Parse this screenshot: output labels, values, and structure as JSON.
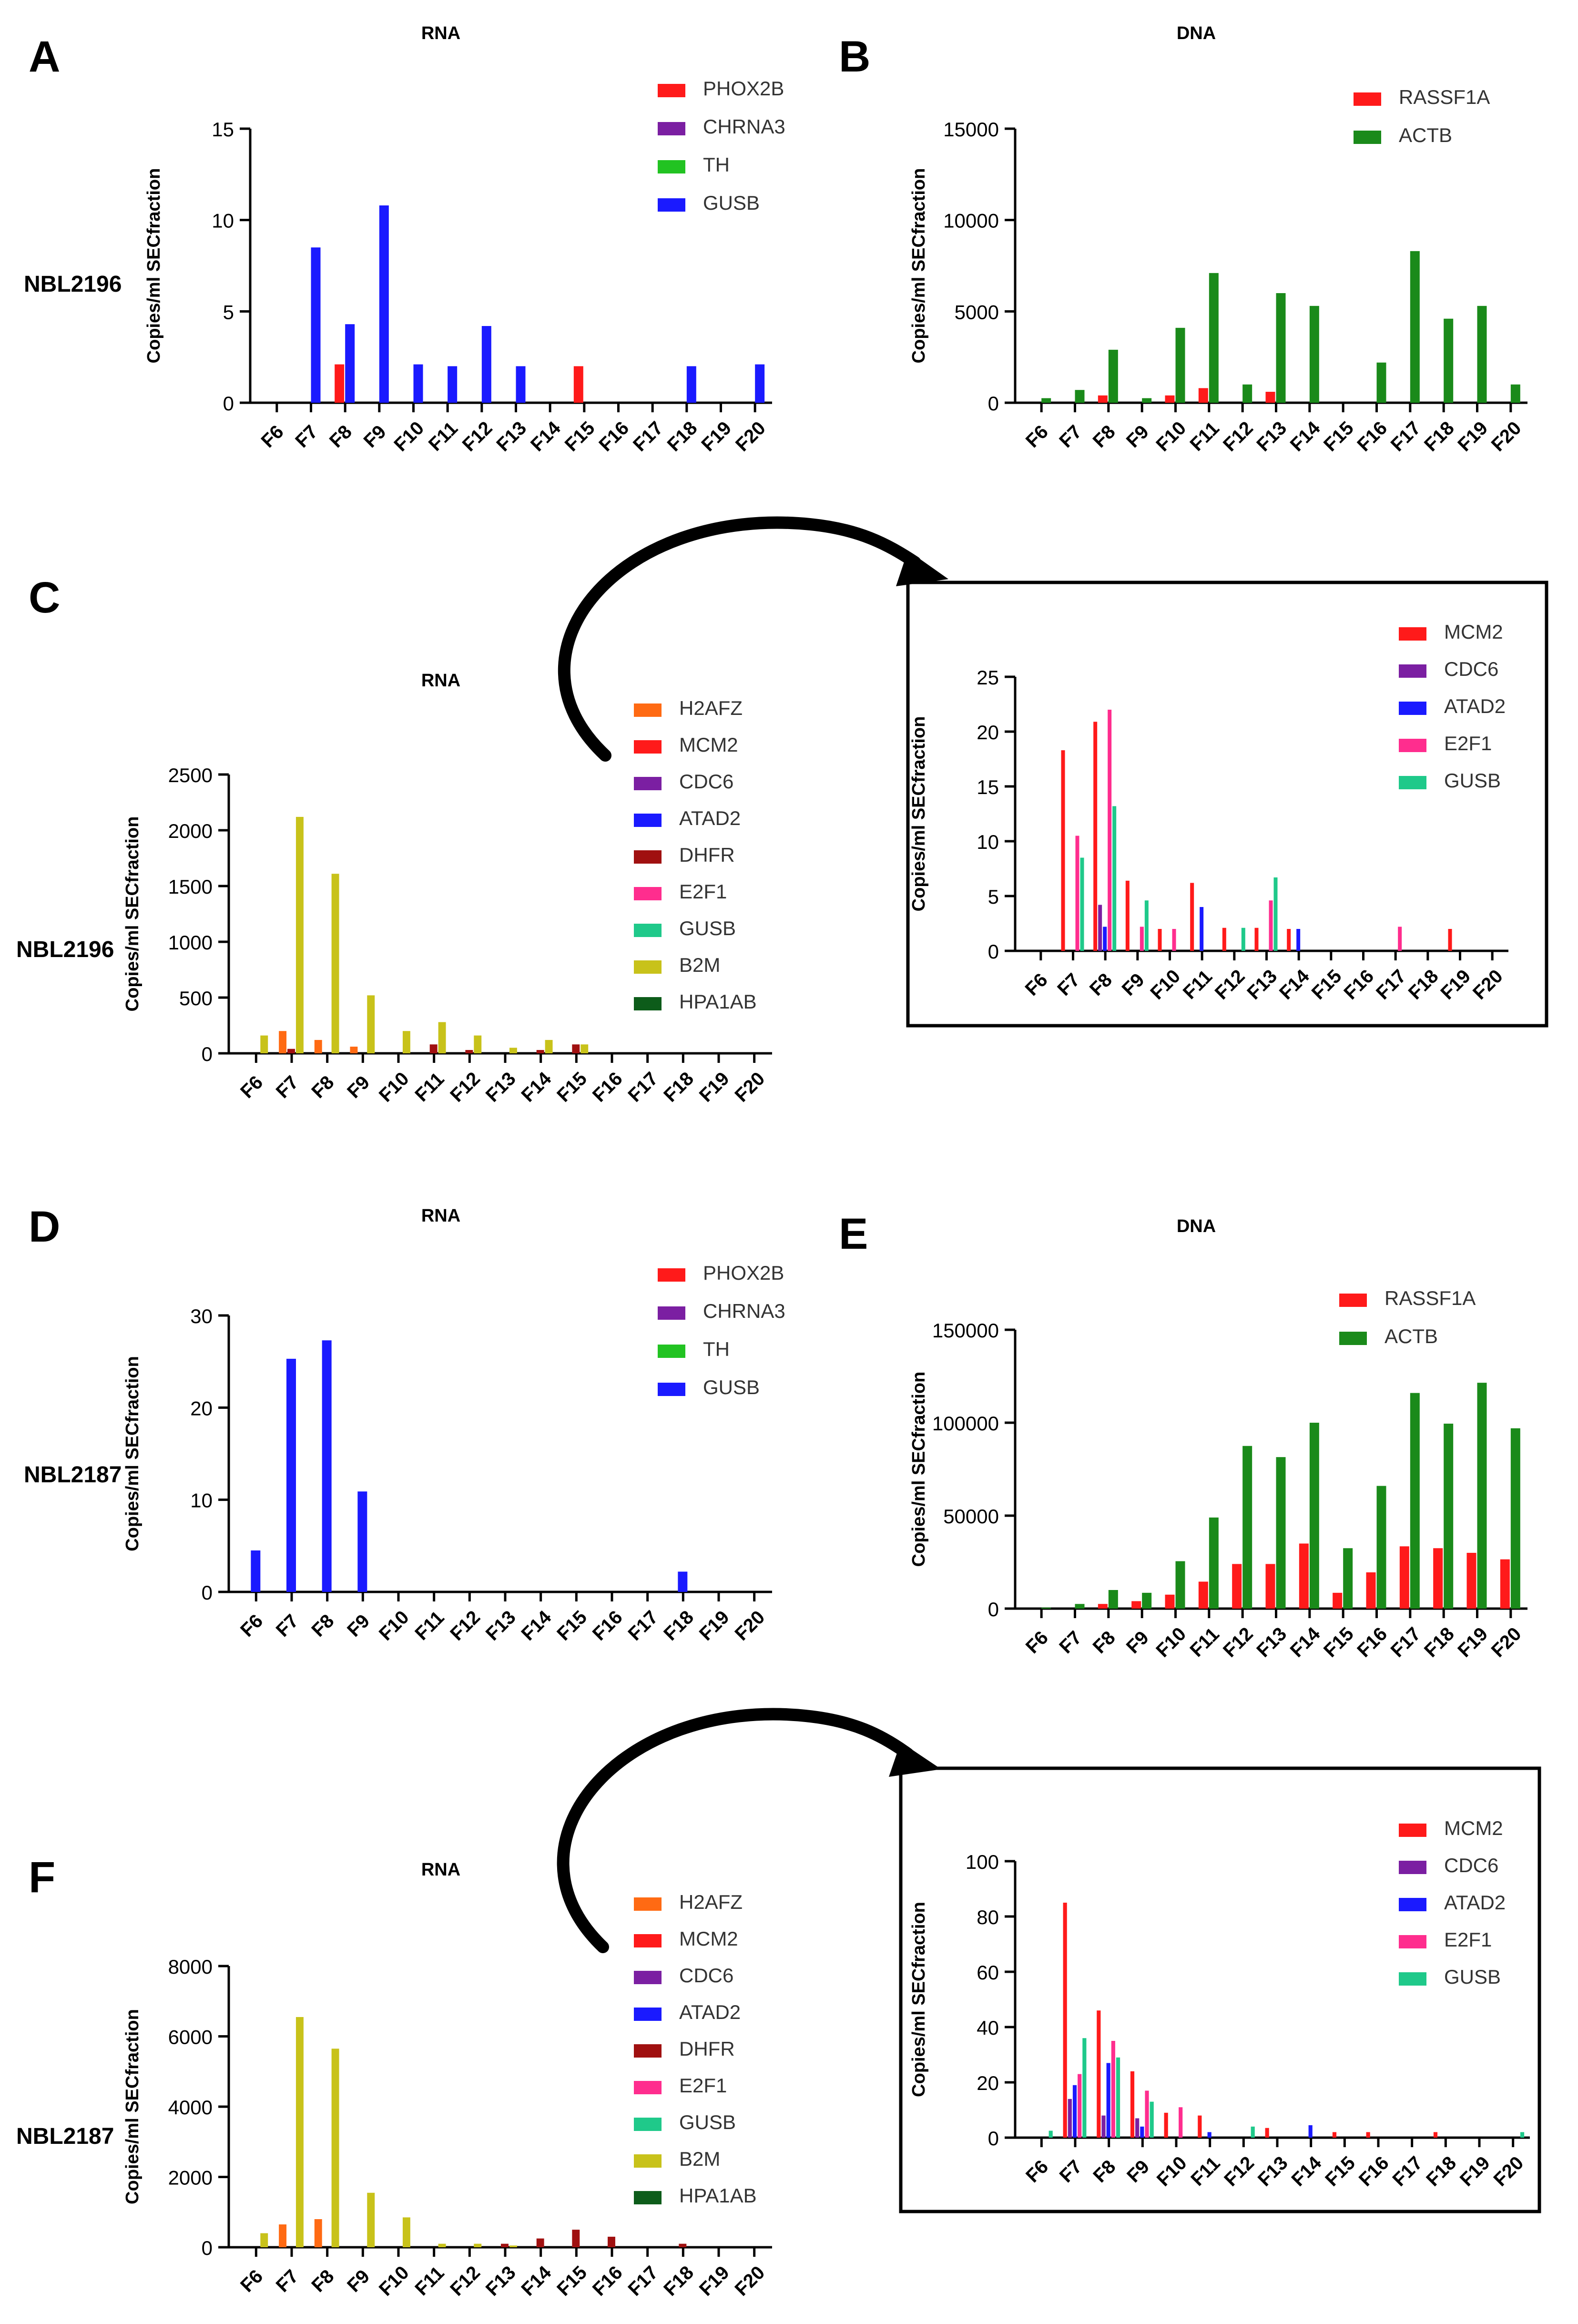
{
  "figure": {
    "panel_letters": [
      "A",
      "B",
      "C",
      "D",
      "E",
      "F"
    ],
    "row_labels": [
      "NBL2196",
      "NBL2196",
      "NBL2187",
      "NBL2187"
    ]
  },
  "colors": {
    "PHOX2B": "#ff1a1a",
    "CHRNA3": "#7b1fa2",
    "TH": "#22c322",
    "GUSB_blue": "#1a1aff",
    "RASSF1A": "#ff1a1a",
    "ACTB": "#1a8a1a",
    "H2AFZ": "#ff6a13",
    "MCM2": "#ff1a1a",
    "CDC6": "#7b1fa2",
    "ATAD2": "#1a1aff",
    "DHFR": "#a01010",
    "E2F1": "#ff2d8e",
    "GUSB": "#1fc98a",
    "B2M": "#c8c21a",
    "HPA1AB": "#0d5c1a"
  },
  "chart_data": [
    {
      "id": "A",
      "type": "bar",
      "title": "RNA",
      "ylabel": "Copies/ml SECfraction",
      "ylim": [
        0,
        15
      ],
      "yticks": [
        0,
        5,
        10,
        15
      ],
      "categories": [
        "F6",
        "F7",
        "F8",
        "F9",
        "F10",
        "F11",
        "F12",
        "F13",
        "F14",
        "F15",
        "F16",
        "F17",
        "F18",
        "F19",
        "F20"
      ],
      "series": [
        {
          "name": "PHOX2B",
          "color": "#ff1a1a",
          "values": [
            0,
            0,
            2.1,
            0,
            0,
            0,
            0,
            0,
            0,
            2.0,
            0,
            0,
            0,
            0,
            0
          ]
        },
        {
          "name": "CHRNA3",
          "color": "#7b1fa2",
          "values": [
            0,
            0,
            0,
            0,
            0,
            0,
            0,
            0,
            0,
            0,
            0,
            0,
            0,
            0,
            0
          ]
        },
        {
          "name": "TH",
          "color": "#22c322",
          "values": [
            0,
            0,
            0,
            0,
            0,
            0,
            0,
            0,
            0,
            0,
            0,
            0,
            0,
            0,
            0
          ]
        },
        {
          "name": "GUSB",
          "color": "#1a1aff",
          "values": [
            0,
            8.5,
            4.3,
            10.8,
            2.1,
            2.0,
            4.2,
            2.0,
            0,
            0,
            0,
            0,
            2.0,
            0,
            2.1
          ]
        }
      ]
    },
    {
      "id": "B",
      "type": "bar",
      "title": "DNA",
      "ylabel": "Copies/ml SECfraction",
      "ylim": [
        0,
        15000
      ],
      "yticks": [
        0,
        5000,
        10000,
        15000
      ],
      "categories": [
        "F6",
        "F7",
        "F8",
        "F9",
        "F10",
        "F11",
        "F12",
        "F13",
        "F14",
        "F15",
        "F16",
        "F17",
        "F18",
        "F19",
        "F20"
      ],
      "series": [
        {
          "name": "RASSF1A",
          "color": "#ff1a1a",
          "values": [
            0,
            0,
            400,
            0,
            400,
            800,
            0,
            600,
            0,
            0,
            0,
            0,
            0,
            0,
            0
          ]
        },
        {
          "name": "ACTB",
          "color": "#1a8a1a",
          "values": [
            250,
            700,
            2900,
            250,
            4100,
            7100,
            1000,
            6000,
            5300,
            0,
            2200,
            8300,
            4600,
            5300,
            1000
          ]
        }
      ]
    },
    {
      "id": "C",
      "type": "bar",
      "title": "RNA",
      "ylabel": "Copies/ml SECfraction",
      "ylim": [
        0,
        2500
      ],
      "yticks": [
        0,
        500,
        1000,
        1500,
        2000,
        2500
      ],
      "categories": [
        "F6",
        "F7",
        "F8",
        "F9",
        "F10",
        "F11",
        "F12",
        "F13",
        "F14",
        "F15",
        "F16",
        "F17",
        "F18",
        "F19",
        "F20"
      ],
      "series": [
        {
          "name": "H2AFZ",
          "color": "#ff6a13",
          "values": [
            0,
            200,
            120,
            60,
            0,
            0,
            0,
            0,
            0,
            0,
            0,
            0,
            0,
            0,
            0
          ]
        },
        {
          "name": "MCM2",
          "color": "#ff1a1a",
          "values": [
            0,
            0,
            0,
            0,
            0,
            0,
            0,
            0,
            0,
            0,
            0,
            0,
            0,
            0,
            0
          ]
        },
        {
          "name": "CDC6",
          "color": "#7b1fa2",
          "values": [
            0,
            0,
            0,
            0,
            0,
            0,
            0,
            0,
            0,
            0,
            0,
            0,
            0,
            0,
            0
          ]
        },
        {
          "name": "ATAD2",
          "color": "#1a1aff",
          "values": [
            0,
            0,
            0,
            0,
            0,
            0,
            0,
            0,
            0,
            0,
            0,
            0,
            0,
            0,
            0
          ]
        },
        {
          "name": "DHFR",
          "color": "#a01010",
          "values": [
            0,
            40,
            0,
            0,
            0,
            80,
            30,
            0,
            30,
            80,
            0,
            0,
            0,
            0,
            0
          ]
        },
        {
          "name": "E2F1",
          "color": "#ff2d8e",
          "values": [
            0,
            0,
            0,
            0,
            0,
            0,
            0,
            0,
            0,
            0,
            0,
            0,
            0,
            0,
            0
          ]
        },
        {
          "name": "GUSB",
          "color": "#1fc98a",
          "values": [
            0,
            0,
            0,
            0,
            0,
            0,
            0,
            0,
            0,
            0,
            0,
            0,
            0,
            0,
            0
          ]
        },
        {
          "name": "B2M",
          "color": "#c8c21a",
          "values": [
            160,
            2120,
            1610,
            520,
            200,
            280,
            160,
            50,
            120,
            80,
            0,
            0,
            0,
            0,
            0
          ]
        },
        {
          "name": "HPA1AB",
          "color": "#0d5c1a",
          "values": [
            0,
            0,
            0,
            0,
            0,
            0,
            0,
            0,
            0,
            0,
            0,
            0,
            0,
            0,
            0
          ]
        }
      ]
    },
    {
      "id": "C-inset",
      "type": "bar",
      "title": "",
      "ylabel": "Copies/ml SECfraction",
      "ylim": [
        0,
        25
      ],
      "yticks": [
        0,
        5,
        10,
        15,
        20,
        25
      ],
      "categories": [
        "F6",
        "F7",
        "F8",
        "F9",
        "F10",
        "F11",
        "F12",
        "F13",
        "F14",
        "F15",
        "F16",
        "F17",
        "F18",
        "F19",
        "F20"
      ],
      "series": [
        {
          "name": "MCM2",
          "color": "#ff1a1a",
          "values": [
            0,
            18.3,
            20.9,
            6.4,
            2.0,
            6.2,
            2.1,
            2.1,
            2.0,
            0,
            0,
            0,
            0,
            2.0,
            0
          ]
        },
        {
          "name": "CDC6",
          "color": "#7b1fa2",
          "values": [
            0,
            0,
            4.2,
            0,
            0,
            0,
            0,
            0,
            0,
            0,
            0,
            0,
            0,
            0,
            0
          ]
        },
        {
          "name": "ATAD2",
          "color": "#1a1aff",
          "values": [
            0,
            0,
            2.2,
            0,
            0,
            4.0,
            0,
            0,
            2.0,
            0,
            0,
            0,
            0,
            0,
            0
          ]
        },
        {
          "name": "E2F1",
          "color": "#ff2d8e",
          "values": [
            0,
            10.5,
            22.0,
            2.2,
            2.0,
            0,
            0,
            4.6,
            0,
            0,
            0,
            2.2,
            0,
            0,
            0
          ]
        },
        {
          "name": "GUSB",
          "color": "#1fc98a",
          "values": [
            0,
            8.5,
            13.2,
            4.6,
            0,
            0,
            2.1,
            6.7,
            0,
            0,
            0,
            0,
            0,
            0,
            0
          ]
        }
      ]
    },
    {
      "id": "D",
      "type": "bar",
      "title": "RNA",
      "ylabel": "Copies/ml SECfraction",
      "ylim": [
        0,
        30
      ],
      "yticks": [
        0,
        10,
        20,
        30
      ],
      "categories": [
        "F6",
        "F7",
        "F8",
        "F9",
        "F10",
        "F11",
        "F12",
        "F13",
        "F14",
        "F15",
        "F16",
        "F17",
        "F18",
        "F19",
        "F20"
      ],
      "series": [
        {
          "name": "PHOX2B",
          "color": "#ff1a1a",
          "values": [
            0,
            0,
            0,
            0,
            0,
            0,
            0,
            0,
            0,
            0,
            0,
            0,
            0,
            0,
            0
          ]
        },
        {
          "name": "CHRNA3",
          "color": "#7b1fa2",
          "values": [
            0,
            0,
            0,
            0,
            0,
            0,
            0,
            0,
            0,
            0,
            0,
            0,
            0,
            0,
            0
          ]
        },
        {
          "name": "TH",
          "color": "#22c322",
          "values": [
            0,
            0,
            0,
            0,
            0,
            0,
            0,
            0,
            0,
            0,
            0,
            0,
            0,
            0,
            0
          ]
        },
        {
          "name": "GUSB",
          "color": "#1a1aff",
          "values": [
            4.5,
            25.3,
            27.3,
            10.9,
            0,
            0,
            0,
            0,
            0,
            0,
            0,
            0,
            2.2,
            0,
            0
          ]
        }
      ]
    },
    {
      "id": "E",
      "type": "bar",
      "title": "DNA",
      "ylabel": "Copies/ml SECfraction",
      "ylim": [
        0,
        150000
      ],
      "yticks": [
        0,
        50000,
        100000,
        150000
      ],
      "categories": [
        "F6",
        "F7",
        "F8",
        "F9",
        "F10",
        "F11",
        "F12",
        "F13",
        "F14",
        "F15",
        "F16",
        "F17",
        "F18",
        "F19",
        "F20"
      ],
      "series": [
        {
          "name": "RASSF1A",
          "color": "#ff1a1a",
          "values": [
            0,
            0,
            2500,
            4000,
            7500,
            14500,
            24000,
            24000,
            35000,
            8500,
            19500,
            33500,
            32500,
            30000,
            26500
          ]
        },
        {
          "name": "ACTB",
          "color": "#1a8a1a",
          "values": [
            500,
            2500,
            10000,
            8500,
            25500,
            49000,
            87500,
            81500,
            100000,
            32500,
            66000,
            116000,
            99500,
            121500,
            97000
          ]
        }
      ]
    },
    {
      "id": "F",
      "type": "bar",
      "title": "RNA",
      "ylabel": "Copies/ml SECfraction",
      "ylim": [
        0,
        8000
      ],
      "yticks": [
        0,
        2000,
        4000,
        6000,
        8000
      ],
      "categories": [
        "F6",
        "F7",
        "F8",
        "F9",
        "F10",
        "F11",
        "F12",
        "F13",
        "F14",
        "F15",
        "F16",
        "F17",
        "F18",
        "F19",
        "F20"
      ],
      "series": [
        {
          "name": "H2AFZ",
          "color": "#ff6a13",
          "values": [
            0,
            650,
            800,
            0,
            0,
            0,
            0,
            0,
            0,
            0,
            0,
            0,
            0,
            0,
            0
          ]
        },
        {
          "name": "MCM2",
          "color": "#ff1a1a",
          "values": [
            0,
            0,
            0,
            0,
            0,
            0,
            0,
            0,
            0,
            0,
            0,
            0,
            0,
            0,
            0
          ]
        },
        {
          "name": "CDC6",
          "color": "#7b1fa2",
          "values": [
            0,
            0,
            0,
            0,
            0,
            0,
            0,
            0,
            0,
            0,
            0,
            0,
            0,
            0,
            0
          ]
        },
        {
          "name": "ATAD2",
          "color": "#1a1aff",
          "values": [
            0,
            0,
            0,
            0,
            0,
            0,
            0,
            0,
            0,
            0,
            0,
            0,
            0,
            0,
            0
          ]
        },
        {
          "name": "DHFR",
          "color": "#a01010",
          "values": [
            0,
            0,
            0,
            0,
            0,
            0,
            0,
            100,
            250,
            500,
            300,
            0,
            100,
            0,
            0
          ]
        },
        {
          "name": "E2F1",
          "color": "#ff2d8e",
          "values": [
            0,
            0,
            0,
            0,
            0,
            0,
            0,
            0,
            0,
            0,
            0,
            0,
            0,
            0,
            0
          ]
        },
        {
          "name": "GUSB",
          "color": "#1fc98a",
          "values": [
            0,
            0,
            0,
            0,
            0,
            0,
            0,
            0,
            0,
            0,
            0,
            0,
            0,
            0,
            0
          ]
        },
        {
          "name": "B2M",
          "color": "#c8c21a",
          "values": [
            400,
            6550,
            5650,
            1550,
            850,
            100,
            100,
            50,
            0,
            0,
            0,
            0,
            0,
            0,
            0
          ]
        },
        {
          "name": "HPA1AB",
          "color": "#0d5c1a",
          "values": [
            0,
            0,
            0,
            0,
            0,
            0,
            0,
            0,
            0,
            0,
            0,
            0,
            0,
            0,
            0
          ]
        }
      ]
    },
    {
      "id": "F-inset",
      "type": "bar",
      "title": "",
      "ylabel": "Copies/ml SECfraction",
      "ylim": [
        0,
        100
      ],
      "yticks": [
        0,
        20,
        40,
        60,
        80,
        100
      ],
      "categories": [
        "F6",
        "F7",
        "F8",
        "F9",
        "F10",
        "F11",
        "F12",
        "F13",
        "F14",
        "F15",
        "F16",
        "F17",
        "F18",
        "F19",
        "F20"
      ],
      "series": [
        {
          "name": "MCM2",
          "color": "#ff1a1a",
          "values": [
            0,
            85,
            46,
            24,
            9,
            8,
            0,
            3.5,
            0,
            2,
            2,
            0,
            2,
            0,
            0
          ]
        },
        {
          "name": "CDC6",
          "color": "#7b1fa2",
          "values": [
            0,
            14,
            8,
            7,
            0,
            0,
            0,
            0,
            0,
            0,
            0,
            0,
            0,
            0,
            0
          ]
        },
        {
          "name": "ATAD2",
          "color": "#1a1aff",
          "values": [
            0,
            19,
            27,
            4,
            0,
            2,
            0,
            0,
            4.5,
            0,
            0,
            0,
            0,
            0,
            0
          ]
        },
        {
          "name": "E2F1",
          "color": "#ff2d8e",
          "values": [
            0,
            23,
            35,
            17,
            11,
            0,
            0,
            0,
            0,
            0,
            0,
            0,
            0,
            0,
            0
          ]
        },
        {
          "name": "GUSB",
          "color": "#1fc98a",
          "values": [
            2.5,
            36,
            29,
            13,
            0,
            0,
            4,
            0,
            0,
            0,
            0,
            0,
            0,
            0,
            2
          ]
        }
      ]
    }
  ]
}
